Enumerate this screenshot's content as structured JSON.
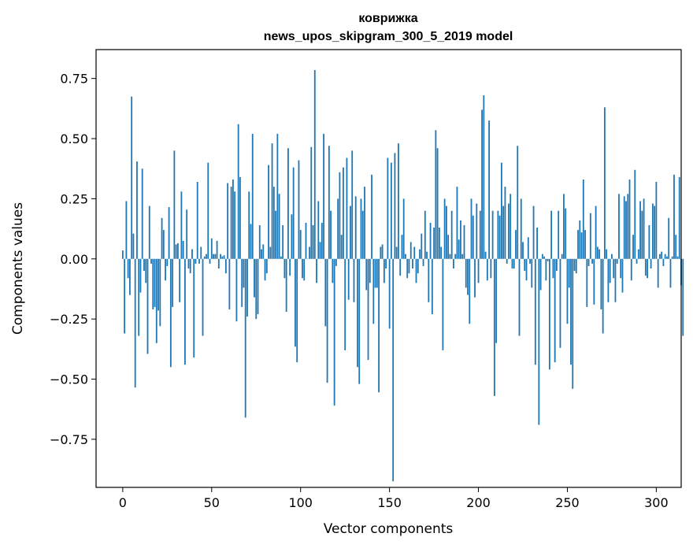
{
  "chart_data": {
    "type": "bar",
    "title": "коврижка",
    "subtitle": "news_upos_skipgram_300_5_2019 model",
    "xlabel": "Vector components",
    "ylabel": "Components values",
    "xlim": [
      -15,
      314
    ],
    "ylim": [
      -0.95,
      0.87
    ],
    "x_ticks": [
      0,
      50,
      100,
      150,
      200,
      250,
      300
    ],
    "y_ticks": [
      0.75,
      0.5,
      0.25,
      0.0,
      -0.25,
      -0.5,
      -0.75
    ],
    "y_tick_labels": [
      "0.75",
      "0.50",
      "0.25",
      "0.00",
      "−0.25",
      "−0.50",
      "−0.75"
    ],
    "grid": false,
    "bar_color": "#1f77b4",
    "values": [
      0.035,
      -0.31,
      0.24,
      -0.08,
      -0.15,
      0.675,
      0.105,
      -0.535,
      0.405,
      -0.32,
      -0.14,
      0.375,
      -0.05,
      -0.1,
      -0.395,
      0.22,
      -0.02,
      -0.21,
      -0.2,
      -0.35,
      -0.215,
      -0.28,
      0.17,
      0.12,
      -0.09,
      -0.03,
      0.215,
      -0.45,
      -0.2,
      0.45,
      0.06,
      0.065,
      -0.18,
      0.28,
      0.075,
      -0.44,
      0.205,
      -0.04,
      -0.06,
      0.04,
      -0.41,
      -0.02,
      0.32,
      -0.02,
      0.05,
      -0.32,
      0.01,
      0.02,
      0.4,
      -0.02,
      0.085,
      0.02,
      0.02,
      0.075,
      -0.04,
      0.02,
      0.01,
      0.015,
      -0.06,
      0.315,
      -0.21,
      0.3,
      0.33,
      0.28,
      -0.26,
      0.56,
      0.34,
      -0.2,
      -0.12,
      -0.66,
      -0.24,
      0.28,
      0.145,
      0.52,
      -0.16,
      -0.25,
      -0.23,
      0.14,
      0.04,
      0.06,
      -0.09,
      -0.06,
      0.39,
      0.05,
      0.48,
      0.3,
      0.2,
      0.52,
      0.27,
      0.01,
      0.14,
      -0.08,
      -0.22,
      0.46,
      -0.07,
      0.185,
      0.38,
      -0.365,
      -0.43,
      0.41,
      0.12,
      -0.08,
      -0.09,
      0.15,
      0.0,
      0.05,
      0.465,
      0.14,
      0.785,
      -0.1,
      0.24,
      0.07,
      0.15,
      0.52,
      -0.28,
      -0.515,
      0.47,
      0.2,
      -0.1,
      -0.61,
      -0.03,
      0.25,
      0.36,
      0.1,
      0.38,
      -0.38,
      0.42,
      -0.17,
      0.22,
      0.45,
      -0.18,
      0.26,
      -0.45,
      -0.52,
      0.25,
      0.2,
      0.3,
      -0.13,
      -0.42,
      -0.1,
      0.35,
      -0.27,
      -0.12,
      -0.12,
      -0.555,
      0.05,
      0.06,
      -0.1,
      -0.04,
      0.42,
      -0.29,
      0.4,
      -0.925,
      0.44,
      0.05,
      0.48,
      -0.07,
      0.1,
      0.25,
      0.02,
      -0.08,
      -0.06,
      0.07,
      -0.04,
      0.05,
      -0.1,
      -0.06,
      0.04,
      0.105,
      -0.03,
      0.2,
      0.03,
      -0.18,
      0.15,
      -0.23,
      0.13,
      0.535,
      0.46,
      0.13,
      0.05,
      -0.38,
      0.25,
      0.22,
      0.1,
      0.02,
      0.2,
      -0.04,
      0.02,
      0.3,
      0.08,
      0.16,
      0.02,
      0.14,
      -0.12,
      -0.15,
      -0.27,
      0.25,
      0.18,
      -0.16,
      0.23,
      -0.1,
      0.2,
      0.62,
      0.68,
      0.03,
      -0.09,
      0.575,
      -0.08,
      0.2,
      -0.57,
      -0.35,
      0.2,
      0.18,
      0.4,
      0.22,
      0.3,
      -0.02,
      0.23,
      0.27,
      -0.04,
      -0.04,
      0.12,
      0.47,
      -0.32,
      0.25,
      0.07,
      -0.05,
      -0.09,
      0.09,
      -0.02,
      -0.12,
      0.22,
      -0.44,
      0.13,
      -0.69,
      -0.13,
      0.02,
      0.01,
      -0.09,
      -0.01,
      -0.46,
      0.2,
      -0.08,
      -0.43,
      -0.05,
      0.2,
      -0.37,
      0.02,
      0.27,
      0.21,
      -0.27,
      -0.12,
      -0.44,
      -0.54,
      -0.05,
      -0.06,
      0.12,
      0.16,
      0.11,
      0.33,
      0.12,
      -0.2,
      -0.03,
      0.19,
      -0.02,
      -0.19,
      0.22,
      0.05,
      0.04,
      -0.21,
      -0.31,
      0.63,
      0.04,
      -0.18,
      -0.1,
      0.02,
      -0.08,
      -0.18,
      -0.02,
      0.27,
      -0.08,
      -0.14,
      0.26,
      0.24,
      0.27,
      0.33,
      -0.09,
      0.1,
      0.37,
      -0.02,
      0.04,
      0.24,
      0.2,
      0.25,
      -0.07,
      -0.08,
      0.14,
      -0.04,
      0.23,
      0.22,
      0.32,
      -0.12,
      0.02,
      0.03,
      -0.03,
      0.02,
      0.01,
      0.17,
      -0.12,
      0.01,
      0.35,
      0.1,
      0.01,
      0.34,
      -0.11,
      -0.32
    ]
  }
}
